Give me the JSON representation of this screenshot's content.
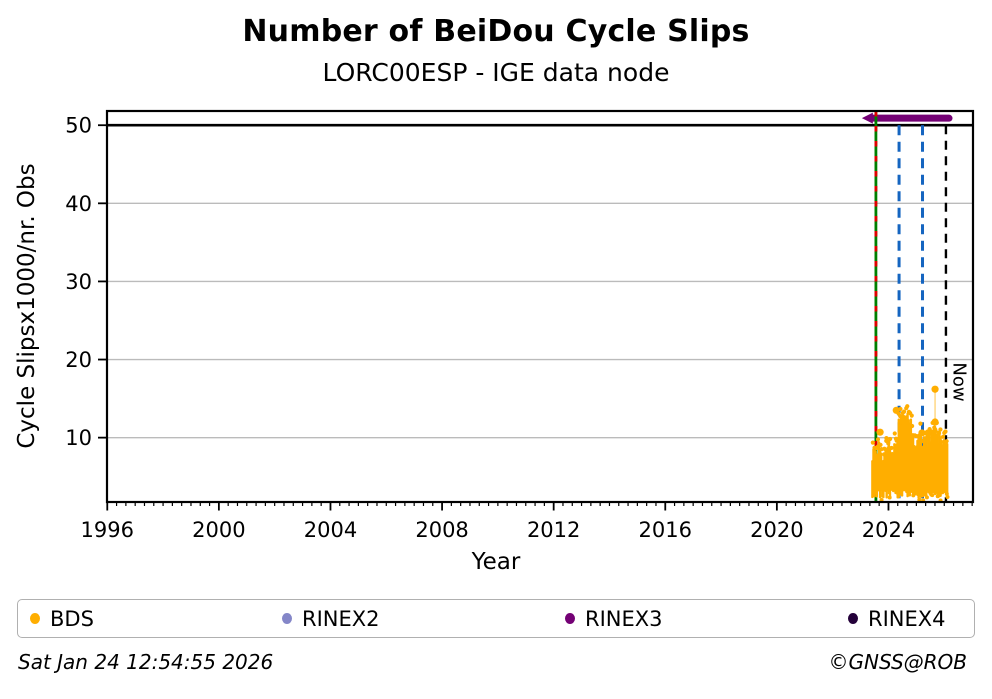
{
  "chart_data": {
    "type": "scatter",
    "title": "Number of BeiDou Cycle Slips",
    "subtitle": "LORC00ESP - IGE data node",
    "xlabel": "Year",
    "ylabel": "Cycle Slipsx1000/nr. Obs",
    "xlim": [
      1995.99,
      2027.03
    ],
    "ylim": [
      1.76,
      51.82
    ],
    "xticks": [
      1996,
      2000,
      2004,
      2008,
      2012,
      2016,
      2020,
      2024
    ],
    "x_minor_step_years": 0.33333,
    "yticks": [
      10,
      20,
      30,
      40,
      50
    ],
    "grid": {
      "horizontal": true,
      "vertical": false,
      "color": "#bbbbbb"
    },
    "reference_lines": {
      "threshold": {
        "y": 50,
        "color": "#000000",
        "style": "solid"
      },
      "data_start": {
        "x": 2023.55,
        "line_color": "#008000",
        "dash_color": "#e00000",
        "style": "solid-with-red-dash-overlay"
      },
      "epoch_markers": {
        "x": [
          2024.38,
          2025.22
        ],
        "color": "#1565c0",
        "style": "dashed"
      },
      "now": {
        "x": 2026.06,
        "label": "Now",
        "color": "#000000",
        "style": "dashed"
      },
      "rinex3_availability": {
        "y": 50.9,
        "x_start": 2023.44,
        "x_end": 2026.17,
        "color": "#740175",
        "arrow_left": true
      }
    },
    "series": [
      {
        "name": "BDS",
        "color": "#ffae00",
        "marker": "dot",
        "cloud": {
          "x_start": 2023.42,
          "x_end": 2026.12,
          "bottom": 2.7,
          "bottom_jitter": 0.5,
          "top_jitter": 1.1,
          "top_profile": [
            [
              2023.42,
              8.2
            ],
            [
              2023.5,
              9.0
            ],
            [
              2023.58,
              8.6
            ],
            [
              2023.66,
              9.3
            ],
            [
              2023.74,
              8.1
            ],
            [
              2023.84,
              7.3
            ],
            [
              2023.94,
              8.0
            ],
            [
              2024.02,
              8.8
            ],
            [
              2024.1,
              8.3
            ],
            [
              2024.2,
              8.9
            ],
            [
              2024.3,
              9.4
            ],
            [
              2024.38,
              11.8
            ],
            [
              2024.48,
              12.6
            ],
            [
              2024.58,
              13.2
            ],
            [
              2024.68,
              12.9
            ],
            [
              2024.78,
              12.2
            ],
            [
              2024.86,
              10.3
            ],
            [
              2024.94,
              8.7
            ],
            [
              2025.04,
              9.1
            ],
            [
              2025.14,
              9.8
            ],
            [
              2025.24,
              9.2
            ],
            [
              2025.34,
              9.6
            ],
            [
              2025.44,
              10.0
            ],
            [
              2025.54,
              10.4
            ],
            [
              2025.64,
              10.8
            ],
            [
              2025.74,
              10.2
            ],
            [
              2025.84,
              9.5
            ],
            [
              2025.94,
              9.9
            ],
            [
              2026.04,
              9.3
            ],
            [
              2026.12,
              8.6
            ]
          ]
        },
        "outliers": [
          [
            2023.7,
            10.7
          ],
          [
            2024.28,
            13.5
          ],
          [
            2025.2,
            10.6
          ],
          [
            2025.42,
            10.6
          ],
          [
            2025.67,
            16.2
          ],
          [
            2025.67,
            12.0
          ]
        ],
        "stem": {
          "x": 2025.67,
          "y_from": 10.8,
          "y_to": 16.2
        }
      }
    ]
  },
  "legend": {
    "items": [
      {
        "label": "BDS",
        "color": "#ffae00"
      },
      {
        "label": "RINEX2",
        "color": "#8486c8"
      },
      {
        "label": "RINEX3",
        "color": "#740175"
      },
      {
        "label": "RINEX4",
        "color": "#24013a"
      }
    ]
  },
  "footer": {
    "timestamp": "Sat Jan 24 12:54:55 2026",
    "credit": "©GNSS@ROB"
  }
}
